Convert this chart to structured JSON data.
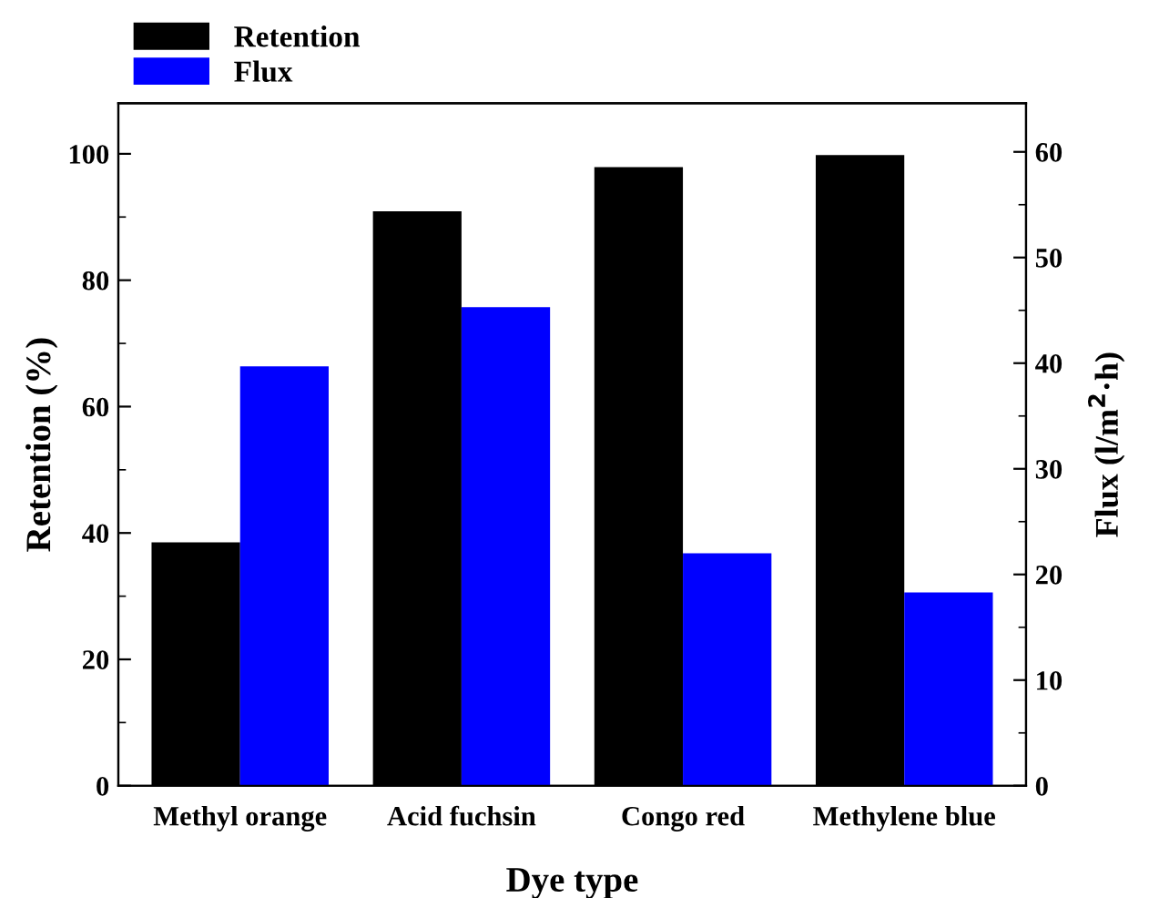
{
  "chart_data": {
    "type": "bar",
    "xlabel": "Dye type",
    "ylabel": "Retention (%)",
    "y2label": "Flux (l/m$^{2}$·h)",
    "categories": [
      "Methyl orange",
      "Acid fuchsin",
      "Congo red",
      "Methylene blue"
    ],
    "series": [
      {
        "name": "Retention",
        "color": "#000000",
        "values": [
          38.5,
          90.9,
          97.9,
          99.8
        ]
      },
      {
        "name": "Flux",
        "color": "#0000ff",
        "axis": "y2",
        "values": [
          39.7,
          45.3,
          22.0,
          18.3
        ]
      }
    ],
    "ylim": [
      0,
      108
    ],
    "yticks": [
      0,
      20,
      40,
      60,
      80,
      100
    ],
    "y2lim": [
      0,
      64.6
    ],
    "y2ticks": [
      0,
      10,
      20,
      30,
      40,
      50,
      60
    ],
    "legend": "top left",
    "grid": false
  }
}
